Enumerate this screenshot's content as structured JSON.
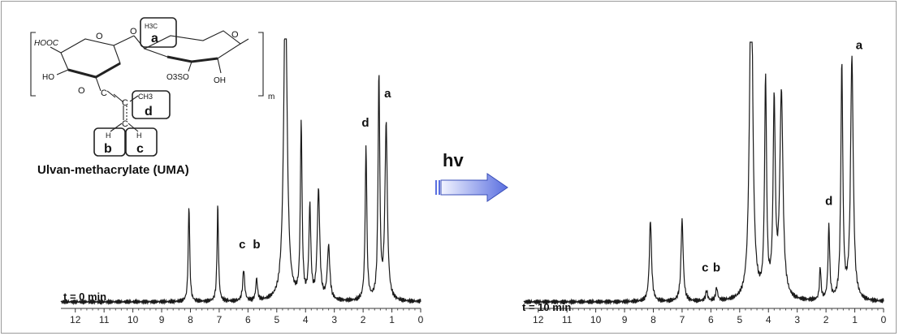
{
  "figure": {
    "compound_name": "Ulvan-methacrylate (UMA)",
    "arrow_label": "hv",
    "colors": {
      "line": "#1a1a1a",
      "arrow_start": "#f2f4ff",
      "arrow_end": "#5a6fe0",
      "arrow_stroke": "#3a4fb8",
      "frame": "#9a9a9a"
    }
  },
  "structure": {
    "hooc": "HOOC",
    "ho": "HO",
    "oh": "OH",
    "so3": "O3SO",
    "ch3": "CH3",
    "h3c": "H3C",
    "h": "H",
    "c": "C",
    "o": "O",
    "m": "m",
    "boxes": [
      "a",
      "b",
      "c",
      "d"
    ]
  },
  "chart_data": [
    {
      "type": "line",
      "title": "",
      "annotation": "t = 0 min",
      "xlabel": "",
      "ylabel": "",
      "x_reversed": true,
      "xlim": [
        12.5,
        0
      ],
      "ylim": [
        0,
        1
      ],
      "ticks": [
        "12",
        "11",
        "10",
        "9",
        "8",
        "7",
        "6",
        "5",
        "4",
        "3",
        "2",
        "1",
        "0"
      ],
      "peaks": [
        {
          "ppm": 8.05,
          "height": 0.4,
          "width": 0.06
        },
        {
          "ppm": 7.05,
          "height": 0.4,
          "width": 0.06
        },
        {
          "ppm": 6.15,
          "height": 0.13,
          "width": 0.08
        },
        {
          "ppm": 5.7,
          "height": 0.09,
          "width": 0.07
        },
        {
          "ppm": 4.7,
          "height": 1.35,
          "width": 0.14
        },
        {
          "ppm": 4.15,
          "height": 0.72,
          "width": 0.07
        },
        {
          "ppm": 3.85,
          "height": 0.38,
          "width": 0.08
        },
        {
          "ppm": 3.55,
          "height": 0.45,
          "width": 0.1
        },
        {
          "ppm": 3.2,
          "height": 0.22,
          "width": 0.1
        },
        {
          "ppm": 1.9,
          "height": 0.63,
          "width": 0.07
        },
        {
          "ppm": 1.45,
          "height": 0.92,
          "width": 0.07
        },
        {
          "ppm": 1.2,
          "height": 0.72,
          "width": 0.1
        }
      ],
      "peak_labels": [
        {
          "text": "c",
          "ppm": 6.2,
          "height": 0.2
        },
        {
          "text": "b",
          "ppm": 5.7,
          "height": 0.2
        },
        {
          "text": "d",
          "ppm": 1.92,
          "height": 0.7
        },
        {
          "text": "a",
          "ppm": 1.15,
          "height": 0.82
        }
      ]
    },
    {
      "type": "line",
      "title": "",
      "annotation": "t = 10 min",
      "xlabel": "",
      "ylabel": "",
      "x_reversed": true,
      "xlim": [
        12.5,
        0
      ],
      "ylim": [
        0,
        1
      ],
      "ticks": [
        "12",
        "11",
        "10",
        "9",
        "8",
        "7",
        "6",
        "5",
        "4",
        "3",
        "2",
        "1",
        "0"
      ],
      "peaks": [
        {
          "ppm": 8.1,
          "height": 0.32,
          "width": 0.09
        },
        {
          "ppm": 7.0,
          "height": 0.32,
          "width": 0.09
        },
        {
          "ppm": 6.15,
          "height": 0.04,
          "width": 0.08
        },
        {
          "ppm": 5.8,
          "height": 0.05,
          "width": 0.08
        },
        {
          "ppm": 4.6,
          "height": 1.4,
          "width": 0.13
        },
        {
          "ppm": 4.1,
          "height": 0.85,
          "width": 0.08
        },
        {
          "ppm": 3.8,
          "height": 0.75,
          "width": 0.09
        },
        {
          "ppm": 3.55,
          "height": 0.8,
          "width": 0.13
        },
        {
          "ppm": 2.2,
          "height": 0.13,
          "width": 0.06
        },
        {
          "ppm": 1.9,
          "height": 0.29,
          "width": 0.07
        },
        {
          "ppm": 1.45,
          "height": 0.92,
          "width": 0.08
        },
        {
          "ppm": 1.1,
          "height": 0.95,
          "width": 0.11
        }
      ],
      "peak_labels": [
        {
          "text": "c",
          "ppm": 6.2,
          "height": 0.1
        },
        {
          "text": "b",
          "ppm": 5.8,
          "height": 0.1
        },
        {
          "text": "d",
          "ppm": 1.9,
          "height": 0.36
        },
        {
          "text": "a",
          "ppm": 0.85,
          "height": 0.97
        }
      ]
    }
  ]
}
